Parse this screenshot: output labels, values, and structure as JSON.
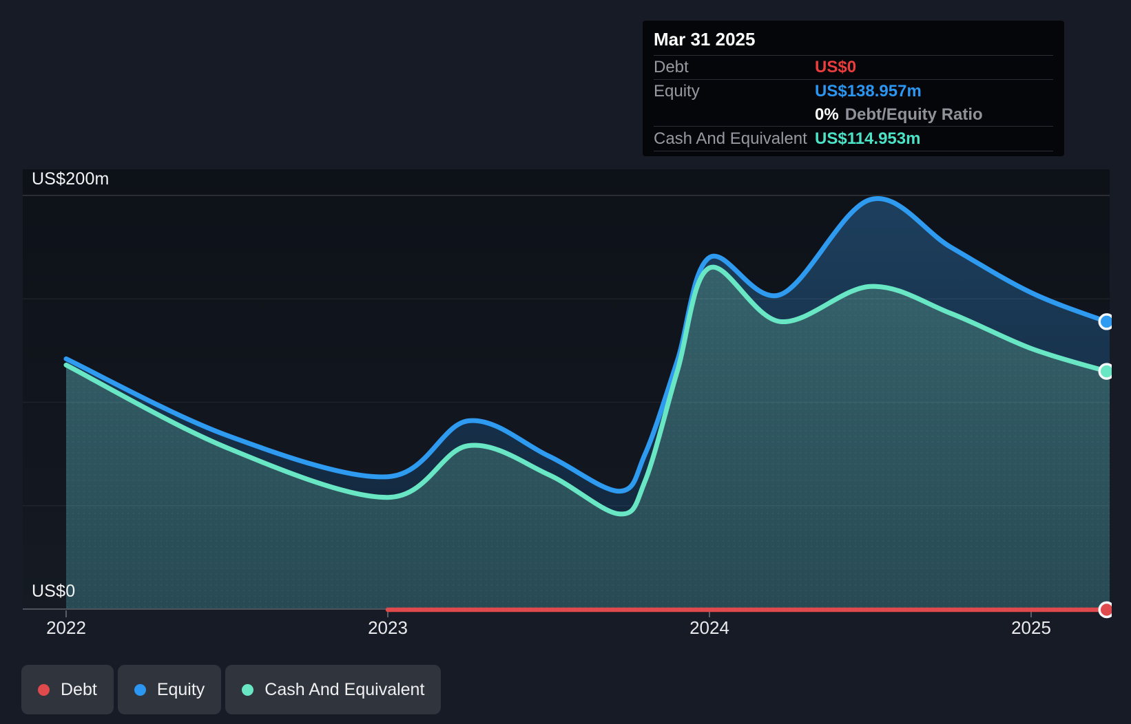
{
  "page": {
    "background": "#171b25"
  },
  "tooltip": {
    "date": "Mar 31 2025",
    "rows": [
      {
        "label": "Debt",
        "value": "US$0",
        "value_color": "#ec3d3d"
      },
      {
        "label": "Equity",
        "value": "US$138.957m",
        "value_color": "#2b97f3"
      },
      {
        "label": "",
        "value_strong": "0%",
        "value_rest": "Debt/Equity Ratio"
      },
      {
        "label": "Cash And Equivalent",
        "value": "US$114.953m",
        "value_color": "#4ce2c6"
      }
    ]
  },
  "axis": {
    "y_top_label": "US$200m",
    "y_zero_label": "US$0",
    "x_labels": [
      "2022",
      "2023",
      "2024",
      "2025"
    ]
  },
  "legend": {
    "items": [
      {
        "label": "Debt",
        "color": "#df4a4d"
      },
      {
        "label": "Equity",
        "color": "#2b97f3"
      },
      {
        "label": "Cash And Equivalent",
        "color": "#69e6c3"
      }
    ]
  },
  "chart_data": {
    "type": "area",
    "unit": "US$ millions",
    "ylim": [
      0,
      200
    ],
    "grid": true,
    "legend_position": "bottom",
    "x_ticks": [
      2022,
      2023,
      2024,
      2025
    ],
    "gridline_values": [
      200,
      150,
      100,
      50
    ],
    "series": [
      {
        "name": "Debt",
        "color": "#df4a4d",
        "x": [
          2023.0,
          2025.25
        ],
        "values": [
          0,
          0
        ]
      },
      {
        "name": "Equity",
        "color": "#2e9af0",
        "x": [
          2022.0,
          2022.5,
          2023.0,
          2023.25,
          2023.5,
          2023.72,
          2023.8,
          2023.9,
          2024.0,
          2024.22,
          2024.5,
          2024.75,
          2025.0,
          2025.25
        ],
        "values": [
          121,
          84,
          64,
          91,
          74,
          57,
          75,
          120,
          170,
          152,
          198,
          175,
          153,
          138.957
        ]
      },
      {
        "name": "Cash And Equivalent",
        "color": "#69e6c3",
        "x": [
          2022.0,
          2022.5,
          2023.0,
          2023.25,
          2023.5,
          2023.72,
          2023.8,
          2023.9,
          2024.0,
          2024.22,
          2024.5,
          2024.75,
          2025.0,
          2025.25
        ],
        "values": [
          118,
          78,
          54,
          79,
          65,
          46,
          62,
          115,
          165,
          139,
          156,
          143,
          126,
          114.953
        ]
      }
    ],
    "highlighted_point": {
      "date": "Mar 31 2025",
      "debt": 0,
      "equity": 138.957,
      "cash_and_equivalent": 114.953
    }
  }
}
